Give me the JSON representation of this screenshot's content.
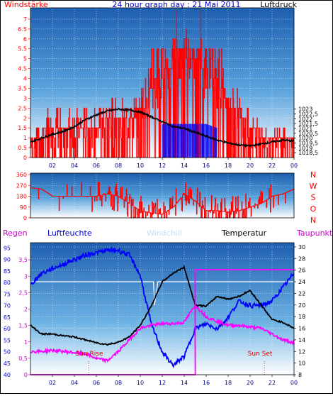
{
  "chart_data": [
    {
      "type": "line",
      "title": "24 hour graph day : 21 Mai 2011",
      "left_label": "Windstärke",
      "right_label": "Luftdruck",
      "left_axis": {
        "min": 0,
        "max": 7.5,
        "ticks": [
          "0",
          "0.5",
          "1",
          "1.5",
          "2",
          "2.5",
          "3",
          "3.5",
          "4",
          "4.5",
          "5",
          "5.5",
          "6",
          "6.5",
          "7"
        ]
      },
      "right_axis": {
        "min": 1018.0,
        "max": 1033.3,
        "ticks": [
          "1018,5",
          "1019",
          "1019,5",
          "1020",
          "1020,5",
          "1021",
          "1021,5",
          "1022",
          "1022,5",
          "1023"
        ]
      },
      "x_ticks": [
        "02",
        "04",
        "06",
        "08",
        "10",
        "12",
        "14",
        "16",
        "18",
        "20",
        "22",
        "00"
      ],
      "series": [
        {
          "name": "Luftdruck",
          "color": "#000000",
          "x": [
            0,
            1,
            2,
            3,
            4,
            5,
            6,
            7,
            8,
            9,
            10,
            11,
            12,
            13,
            14,
            15,
            16,
            17,
            18,
            19,
            20,
            21,
            22,
            23,
            24
          ],
          "values": [
            1019.6,
            1020.0,
            1020.4,
            1020.7,
            1021.2,
            1021.9,
            1022.4,
            1022.8,
            1023.0,
            1022.9,
            1022.7,
            1022.2,
            1021.7,
            1021.2,
            1021.0,
            1020.6,
            1020.2,
            1019.8,
            1019.5,
            1019.3,
            1019.2,
            1019.4,
            1019.6,
            1019.8,
            1019.7
          ]
        },
        {
          "name": "Wind",
          "color": "#ff0000",
          "x": [
            0,
            1,
            2,
            3,
            4,
            5,
            6,
            7,
            8,
            9,
            10,
            11,
            12,
            13,
            14,
            15,
            16,
            17,
            18,
            19,
            20,
            21,
            22,
            23,
            24
          ],
          "values": [
            0.8,
            1.2,
            1.6,
            1.5,
            1.7,
            1.6,
            1.7,
            1.8,
            1.9,
            2.0,
            2.4,
            3.5,
            4.2,
            4.8,
            5.3,
            5.0,
            4.3,
            3.8,
            3.0,
            2.3,
            1.6,
            1.2,
            0.8,
            1.0,
            0.9
          ]
        },
        {
          "name": "Gust",
          "color": "#0000ff",
          "x": [
            12,
            13,
            14,
            15,
            16,
            17
          ],
          "values": [
            1.7,
            1.7,
            1.7,
            1.7,
            1.7,
            1.5
          ]
        }
      ]
    },
    {
      "type": "line",
      "title": "",
      "left_axis": {
        "min": 0,
        "max": 360,
        "ticks": [
          "0",
          "90",
          "180",
          "270",
          "360"
        ]
      },
      "right_labels": [
        "N",
        "W",
        "S",
        "O",
        "N"
      ],
      "x": [
        0,
        1,
        2,
        3,
        4,
        5,
        6,
        7,
        8,
        9,
        10,
        11,
        12,
        13,
        14,
        15,
        16,
        17,
        18,
        19,
        20,
        21,
        22,
        23,
        24
      ],
      "series": [
        {
          "name": "Windrichtung",
          "color": "#ff0000",
          "values": [
            250,
            240,
            180,
            180,
            180,
            180,
            180,
            200,
            180,
            120,
            60,
            40,
            30,
            90,
            200,
            140,
            60,
            60,
            50,
            60,
            90,
            120,
            180,
            200,
            240
          ]
        }
      ]
    },
    {
      "type": "line",
      "title": "",
      "legend": [
        "Regen",
        "Luftfeuchte",
        "Windchill",
        "Temperatur",
        "Taupunkt"
      ],
      "left_axis_rain": {
        "min": 0,
        "max": 4,
        "ticks": [
          "0",
          "0,5",
          "1",
          "1,5",
          "2",
          "2,5",
          "3",
          "3,5"
        ]
      },
      "left_axis_humidity": {
        "min": 40,
        "max": 97,
        "ticks": [
          "40",
          "45",
          "50",
          "55",
          "60",
          "65",
          "70",
          "75",
          "80",
          "85",
          "90",
          "95"
        ]
      },
      "right_axis_temp": {
        "min": 8,
        "max": 30.6,
        "ticks": [
          "8",
          "10",
          "12",
          "14",
          "16",
          "18",
          "20",
          "22",
          "24",
          "26",
          "28",
          "30"
        ]
      },
      "x_ticks": [
        "02",
        "04",
        "06",
        "08",
        "10",
        "12",
        "14",
        "16",
        "18",
        "20",
        "22",
        "00"
      ],
      "annotations": [
        "Sun Rise",
        "Sun Set"
      ],
      "annotation_x": [
        5.3,
        21.3
      ],
      "series": [
        {
          "name": "Luftfeuchte",
          "color": "#0000ff",
          "x": [
            0,
            1,
            2,
            3,
            4,
            5,
            6,
            7,
            8,
            9,
            10,
            11,
            12,
            13,
            14,
            15,
            16,
            17,
            18,
            19,
            20,
            21,
            22,
            23,
            24
          ],
          "values": [
            79,
            84,
            86,
            88,
            90,
            92,
            93,
            94,
            94,
            92,
            83,
            62,
            50,
            44,
            48,
            60,
            62,
            60,
            65,
            72,
            70,
            70,
            72,
            78,
            84
          ]
        },
        {
          "name": "Temperatur",
          "color": "#000000",
          "x": [
            0,
            1,
            2,
            3,
            4,
            5,
            6,
            7,
            8,
            9,
            10,
            11,
            12,
            13,
            14,
            15,
            16,
            17,
            18,
            19,
            20,
            21,
            22,
            23,
            24
          ],
          "values": [
            16.5,
            15.0,
            15.0,
            14.7,
            14.5,
            14.0,
            13.5,
            13.2,
            13.6,
            14.5,
            16.5,
            19.8,
            24.0,
            25.5,
            26.5,
            20.0,
            19.8,
            21.5,
            21.0,
            21.5,
            22.5,
            20.0,
            17.5,
            17.0,
            16.0
          ]
        },
        {
          "name": "Taupunkt",
          "color": "#ff00ff",
          "x": [
            0,
            1,
            2,
            3,
            4,
            5,
            6,
            7,
            8,
            9,
            10,
            11,
            12,
            13,
            14,
            15,
            16,
            17,
            18,
            19,
            20,
            21,
            22,
            23,
            24
          ],
          "values": [
            12.0,
            12.0,
            12.2,
            12.0,
            11.8,
            11.6,
            10.8,
            10.4,
            12.0,
            14.0,
            16.0,
            16.5,
            16.8,
            16.8,
            17.0,
            20.0,
            18.0,
            17.2,
            16.5,
            16.5,
            16.2,
            16.0,
            15.0,
            14.0,
            13.5
          ]
        },
        {
          "name": "Regen",
          "color": "#ff00ff",
          "x": [
            0,
            15,
            15,
            24
          ],
          "values": [
            0,
            0,
            3.2,
            3.2
          ]
        },
        {
          "name": "Windchill",
          "color": "#ffffff",
          "x": [
            0,
            11.2,
            11.3,
            11.6,
            11.7,
            24
          ],
          "values": [
            24.0,
            24.0,
            20.0,
            24.0,
            24.0,
            24.0
          ]
        }
      ]
    }
  ]
}
